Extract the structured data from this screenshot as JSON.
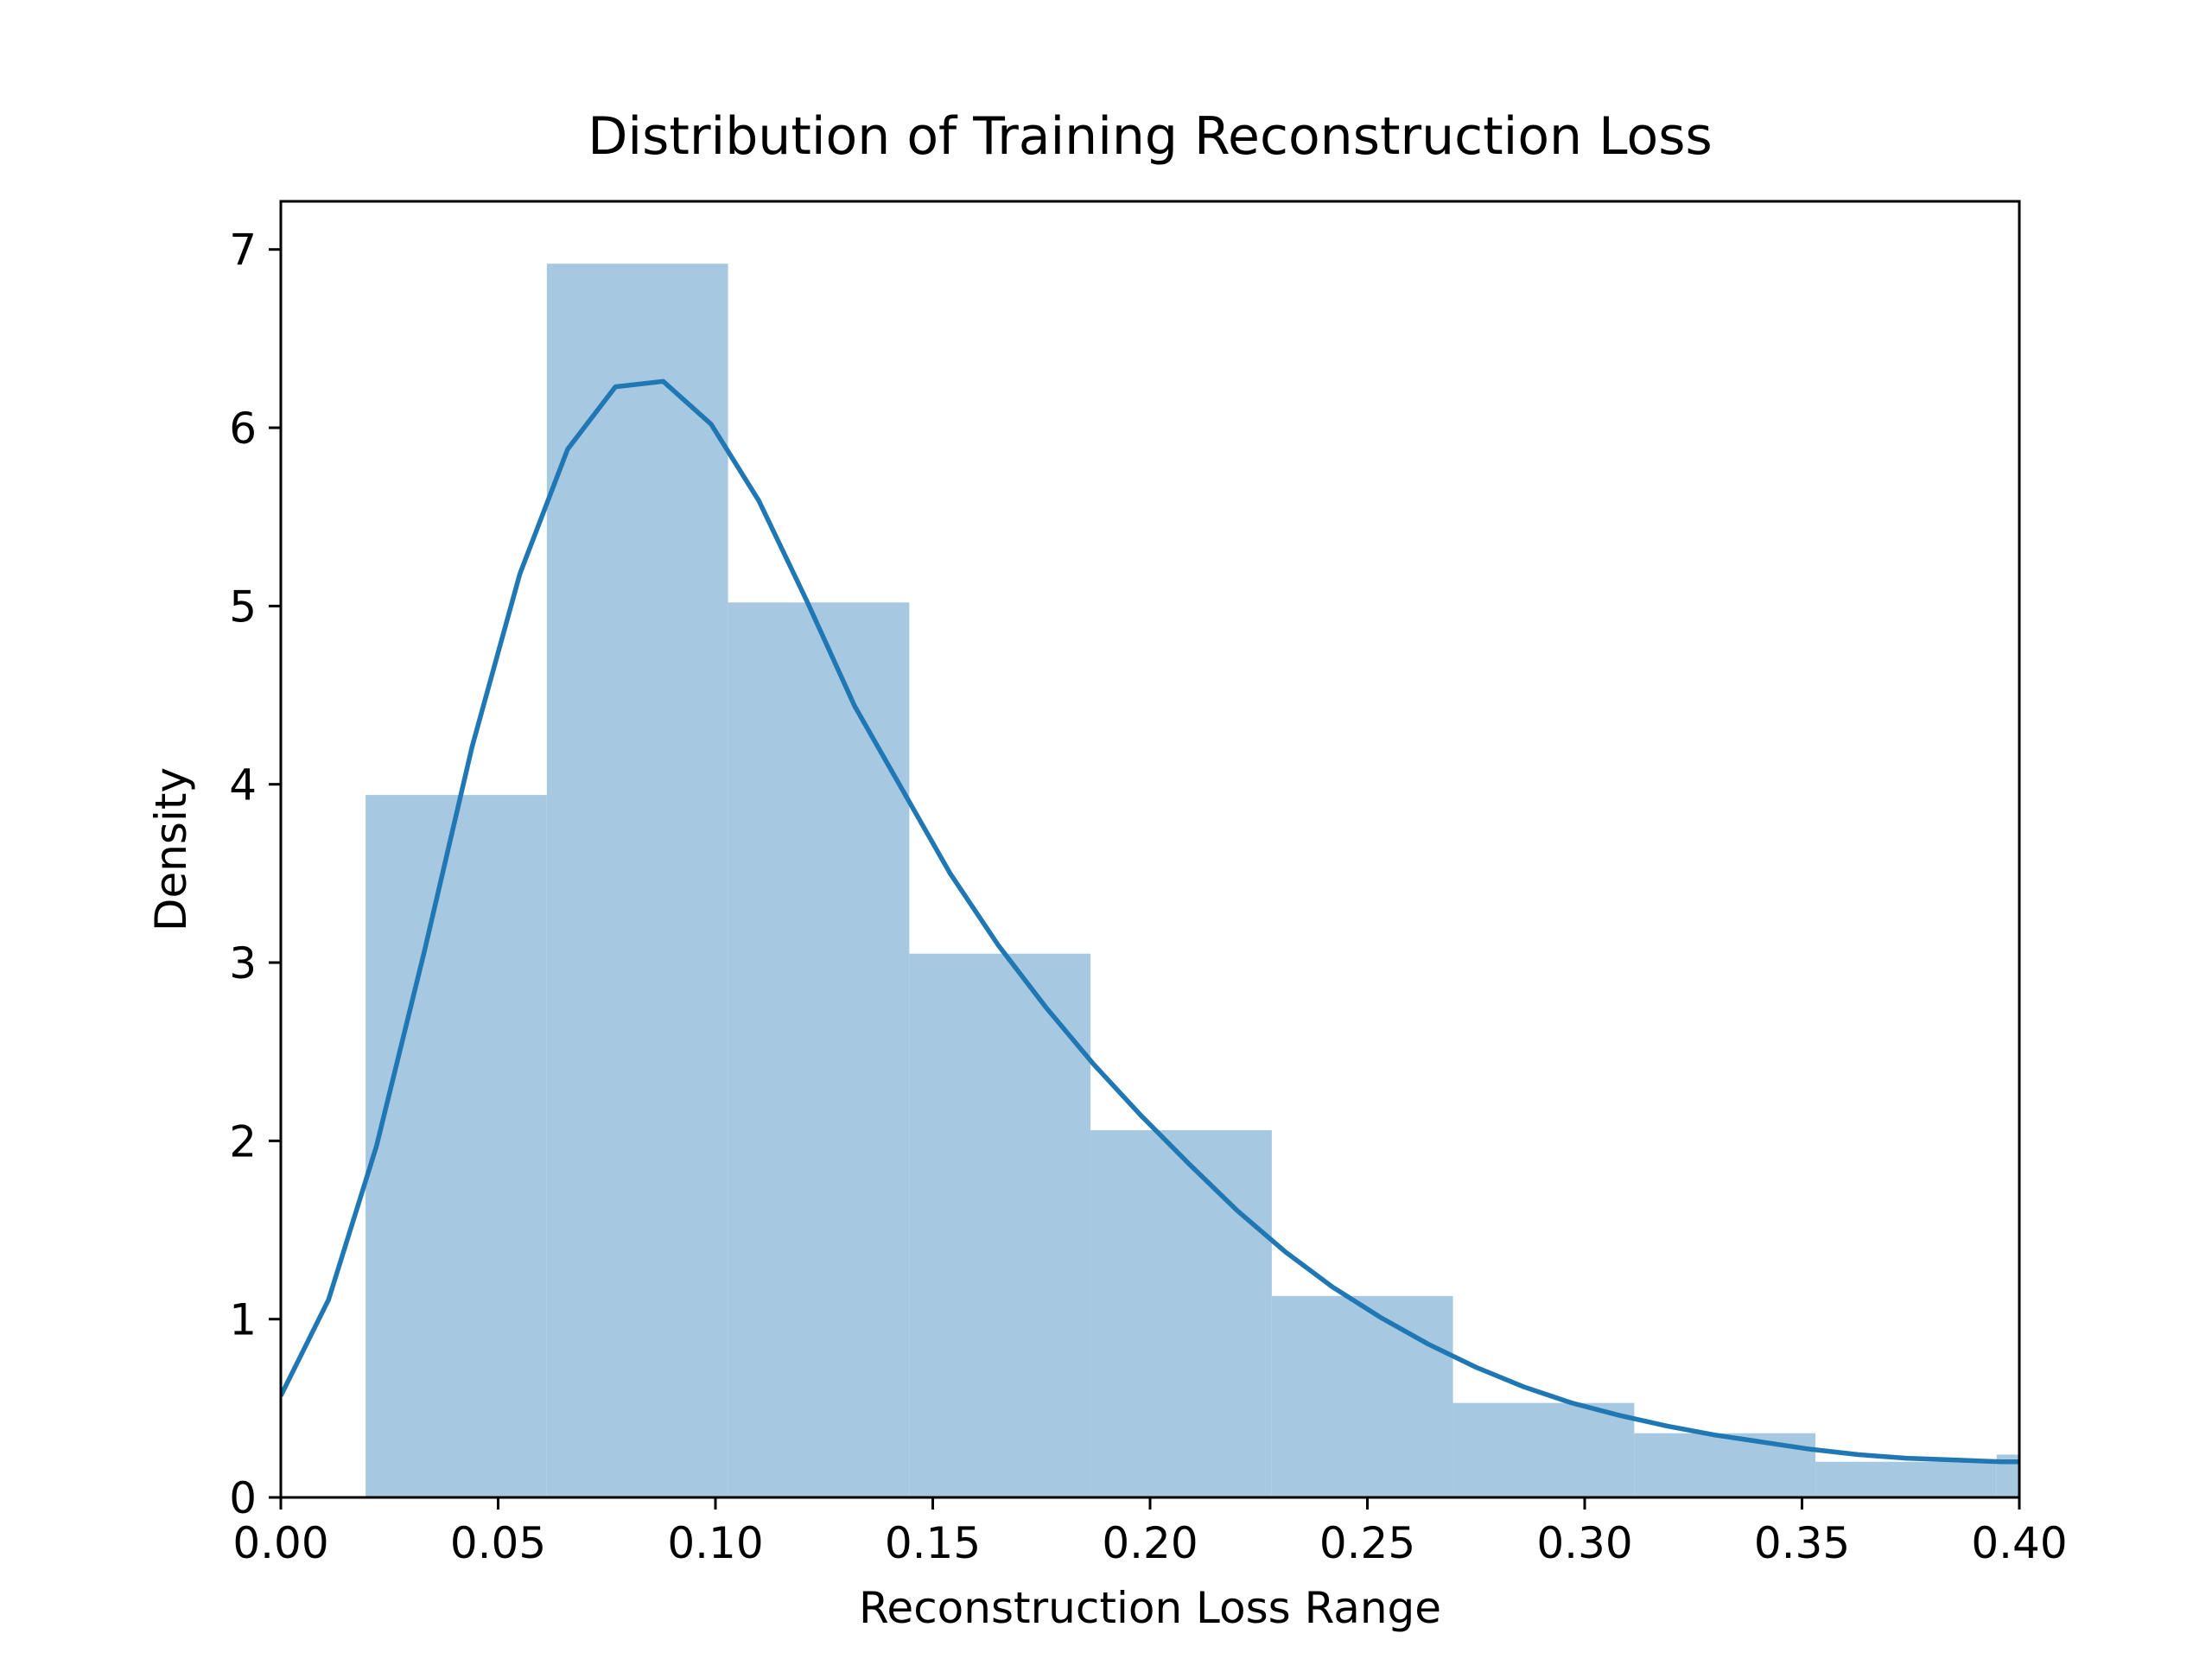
{
  "chart_data": {
    "type": "histogram",
    "title": "Distribution of Training Reconstruction Loss",
    "xlabel": "Reconstruction Loss Range",
    "ylabel": "Density",
    "xlim": [
      0.0,
      0.4
    ],
    "ylim": [
      0,
      7.27
    ],
    "grid": false,
    "legend": "none",
    "x_ticks": [
      "0.00",
      "0.05",
      "0.10",
      "0.15",
      "0.20",
      "0.25",
      "0.30",
      "0.35",
      "0.40"
    ],
    "y_ticks": [
      "0",
      "1",
      "2",
      "3",
      "4",
      "5",
      "6",
      "7"
    ],
    "bins": [
      {
        "start": 0.0195,
        "end": 0.0612,
        "density": 3.94
      },
      {
        "start": 0.0612,
        "end": 0.1029,
        "density": 6.92
      },
      {
        "start": 0.1029,
        "end": 0.1446,
        "density": 5.02
      },
      {
        "start": 0.1446,
        "end": 0.1863,
        "density": 3.05
      },
      {
        "start": 0.1863,
        "end": 0.228,
        "density": 2.06
      },
      {
        "start": 0.228,
        "end": 0.2697,
        "density": 1.13
      },
      {
        "start": 0.2697,
        "end": 0.3114,
        "density": 0.53
      },
      {
        "start": 0.3114,
        "end": 0.3531,
        "density": 0.36
      },
      {
        "start": 0.3531,
        "end": 0.3948,
        "density": 0.2
      },
      {
        "start": 0.3948,
        "end": 0.4365,
        "density": 0.24
      }
    ],
    "kde": {
      "x": [
        0.0,
        0.011,
        0.022,
        0.033,
        0.044,
        0.055,
        0.066,
        0.077,
        0.088,
        0.099,
        0.11,
        0.121,
        0.132,
        0.143,
        0.154,
        0.165,
        0.176,
        0.187,
        0.198,
        0.209,
        0.22,
        0.231,
        0.242,
        0.253,
        0.264,
        0.275,
        0.286,
        0.297,
        0.308,
        0.319,
        0.33,
        0.341,
        0.352,
        0.363,
        0.374,
        0.385,
        0.396,
        0.4
      ],
      "y": [
        0.57,
        1.11,
        1.97,
        3.06,
        4.21,
        5.18,
        5.88,
        6.23,
        6.26,
        6.02,
        5.59,
        5.03,
        4.44,
        3.97,
        3.5,
        3.1,
        2.75,
        2.43,
        2.14,
        1.87,
        1.61,
        1.38,
        1.18,
        1.01,
        0.86,
        0.73,
        0.62,
        0.53,
        0.46,
        0.4,
        0.35,
        0.31,
        0.27,
        0.24,
        0.22,
        0.21,
        0.2,
        0.2
      ]
    },
    "colors": {
      "bar": "#a6c8e0",
      "line": "#1f77b4",
      "axes": "#000000"
    }
  }
}
